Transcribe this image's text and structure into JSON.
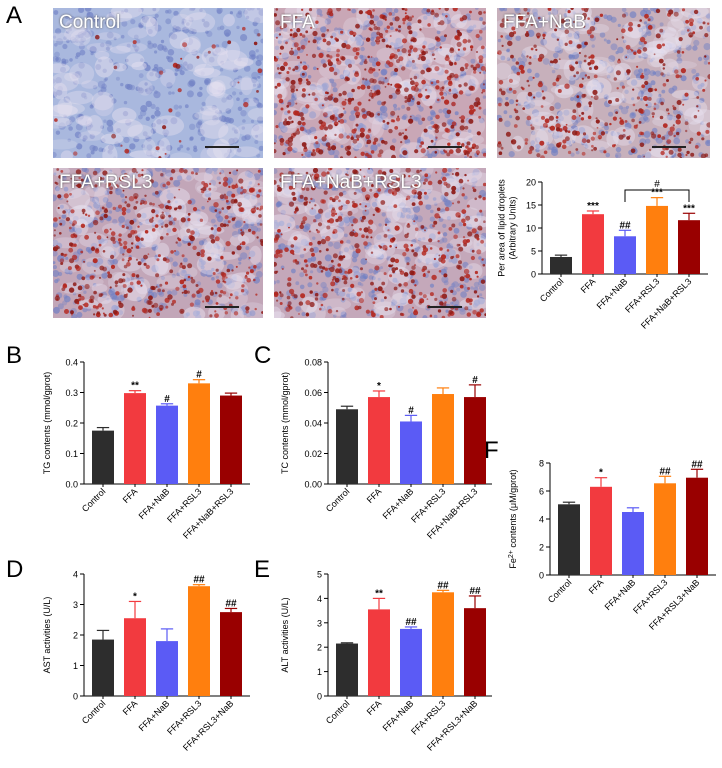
{
  "panels": {
    "A": "A",
    "B": "B",
    "C": "C",
    "D": "D",
    "E": "E",
    "F": "F"
  },
  "micrographs": [
    {
      "label": "Control",
      "tint": "#a9b8de",
      "spots": 0.05
    },
    {
      "label": "FFA",
      "tint": "#c9a7b6",
      "spots": 0.9
    },
    {
      "label": "FFA+NaB",
      "tint": "#c7b0bb",
      "spots": 0.6
    },
    {
      "label": "FFA+RSL3",
      "tint": "#c2a6b8",
      "spots": 0.75
    },
    {
      "label": "FFA+NaB+RSL3",
      "tint": "#c4a8ba",
      "spots": 0.8
    }
  ],
  "colors": {
    "Control": "#2d2d2d",
    "FFA": "#f23a3f",
    "FFA+NaB": "#5b5bf5",
    "FFA+RSL3": "#ff7f0e",
    "FFA+NaB+RSL3": "#990000"
  },
  "chart_data": [
    {
      "id": "lipid",
      "type": "bar",
      "ylabel": "Per area of lipid droplets (Arbitrary Units)",
      "ylabel_lines": [
        "Per area of lipid droplets",
        "(Arbitrary Units)"
      ],
      "ylim": [
        0,
        20
      ],
      "yticks": [
        "0",
        "5",
        "10",
        "15",
        "20"
      ],
      "ytick_values": [
        0,
        5,
        10,
        15,
        20
      ],
      "categories": [
        "Control",
        "FFA",
        "FFA+NaB",
        "FFA+RSL3",
        "FFA+NaB+RSL3"
      ],
      "values": [
        3.7,
        13.0,
        8.2,
        14.8,
        11.7
      ],
      "errors": [
        0.4,
        0.7,
        1.3,
        1.8,
        1.5
      ],
      "annotations": [
        "",
        "***",
        "##",
        "***",
        "***"
      ],
      "bracket": {
        "from": 2,
        "to": 4,
        "label": "#"
      }
    },
    {
      "id": "tg",
      "type": "bar",
      "ylabel": "TG contents (mmol/gprot)",
      "ylabel_lines": [
        "TG contents (mmol/gprot)"
      ],
      "ylim": [
        0,
        0.4
      ],
      "yticks": [
        "0.0",
        "0.1",
        "0.2",
        "0.3",
        "0.4"
      ],
      "ytick_values": [
        0,
        0.1,
        0.2,
        0.3,
        0.4
      ],
      "categories": [
        "Control",
        "FFA",
        "FFA+NaB",
        "FFA+RSL3",
        "FFA+NaB+RSL3"
      ],
      "values": [
        0.175,
        0.298,
        0.257,
        0.33,
        0.29
      ],
      "errors": [
        0.01,
        0.008,
        0.006,
        0.012,
        0.008
      ],
      "annotations": [
        "",
        "**",
        "#",
        "#",
        ""
      ]
    },
    {
      "id": "tc",
      "type": "bar",
      "ylabel": "TC contents (mmol/gprot)",
      "ylabel_lines": [
        "TC contents (mmol/gprot)"
      ],
      "ylim": [
        0,
        0.08
      ],
      "yticks": [
        "0.00",
        "0.02",
        "0.04",
        "0.06",
        "0.08"
      ],
      "ytick_values": [
        0,
        0.02,
        0.04,
        0.06,
        0.08
      ],
      "categories": [
        "Control",
        "FFA",
        "FFA+NaB",
        "FFA+RSL3",
        "FFA+NaB+RSL3"
      ],
      "values": [
        0.049,
        0.057,
        0.041,
        0.059,
        0.057
      ],
      "errors": [
        0.002,
        0.004,
        0.004,
        0.004,
        0.008
      ],
      "annotations": [
        "",
        "*",
        "#",
        "",
        "#"
      ]
    },
    {
      "id": "ast",
      "type": "bar",
      "ylabel": "AST activities (U/L)",
      "ylabel_lines": [
        "AST activities (U/L)"
      ],
      "ylim": [
        0,
        4
      ],
      "yticks": [
        "0",
        "1",
        "2",
        "3",
        "4"
      ],
      "ytick_values": [
        0,
        1,
        2,
        3,
        4
      ],
      "categories": [
        "Control",
        "FFA",
        "FFA+NaB",
        "FFA+RSL3",
        "FFA+RSL3+NaB"
      ],
      "values": [
        1.85,
        2.55,
        1.8,
        3.6,
        2.75
      ],
      "errors": [
        0.3,
        0.55,
        0.4,
        0.05,
        0.12
      ],
      "annotations": [
        "",
        "*",
        "",
        "##",
        "##"
      ]
    },
    {
      "id": "alt",
      "type": "bar",
      "ylabel": "ALT activities (U/L)",
      "ylabel_lines": [
        "ALT activities (U/L)"
      ],
      "ylim": [
        0,
        5
      ],
      "yticks": [
        "0",
        "1",
        "2",
        "3",
        "4",
        "5"
      ],
      "ytick_values": [
        0,
        1,
        2,
        3,
        4,
        5
      ],
      "categories": [
        "Control",
        "FFA",
        "FFA+NaB",
        "FFA+RSL3",
        "FFA+RSL3+NaB"
      ],
      "values": [
        2.15,
        3.55,
        2.75,
        4.25,
        3.6
      ],
      "errors": [
        0.03,
        0.45,
        0.08,
        0.08,
        0.5
      ],
      "annotations": [
        "",
        "**",
        "##",
        "##",
        "##"
      ]
    },
    {
      "id": "fe",
      "type": "bar",
      "ylabel": "Fe2+ contents (μM/gprot)",
      "ylabel_lines": [
        "Fe2+ contents (μM/gprot)"
      ],
      "ylim": [
        0,
        8
      ],
      "yticks": [
        "0",
        "2",
        "4",
        "6",
        "8"
      ],
      "ytick_values": [
        0,
        2,
        4,
        6,
        8
      ],
      "categories": [
        "Control",
        "FFA",
        "FFA+NaB",
        "FFA+RSL3",
        "FFA+RSL3+NaB"
      ],
      "values": [
        5.05,
        6.3,
        4.5,
        6.55,
        6.95
      ],
      "errors": [
        0.15,
        0.65,
        0.3,
        0.5,
        0.6
      ],
      "annotations": [
        "",
        "*",
        "",
        "##",
        "##"
      ]
    }
  ]
}
